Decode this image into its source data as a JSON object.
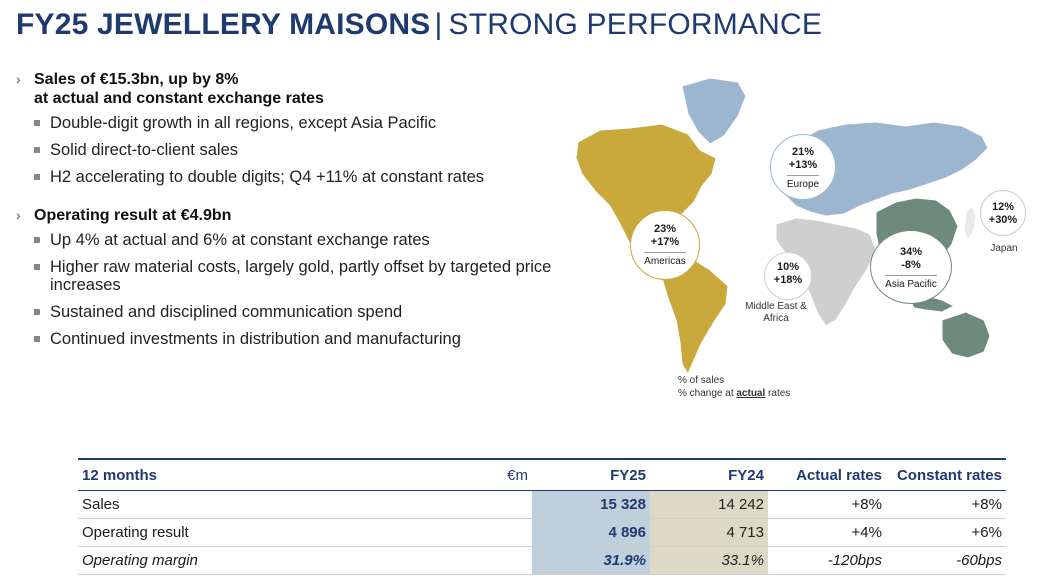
{
  "title": {
    "bold": "FY25 JEWELLERY MAISONS",
    "separator": "|",
    "thin": "STRONG PERFORMANCE"
  },
  "section1": {
    "heading_line1": "Sales of €15.3bn, up by 8%",
    "heading_line2": "at actual and constant exchange rates",
    "items": [
      "Double-digit growth in all regions, except Asia Pacific",
      "Solid direct-to-client sales",
      "H2 accelerating to double digits; Q4 +11% at constant rates"
    ]
  },
  "section2": {
    "heading": "Operating result at €4.9bn",
    "items": [
      "Up 4% at actual and 6% at constant exchange rates",
      "Higher raw material costs, largely gold, partly offset by targeted price increases",
      "Sustained and disciplined communication spend",
      "Continued investments in distribution and manufacturing"
    ]
  },
  "map": {
    "colors": {
      "americas": "#c9a83c",
      "europe": "#9db6cf",
      "middle_east_africa": "#cfcfcf",
      "asia_pacific": "#6e8a7c",
      "japan": "#e9e9e9"
    },
    "regions": {
      "europe": {
        "share": "21%",
        "change": "+13%",
        "name": "Europe"
      },
      "americas": {
        "share": "23%",
        "change": "+17%",
        "name": "Americas"
      },
      "mea": {
        "share": "10%",
        "change": "+18%",
        "name": "Middle East & Africa"
      },
      "asia_pacific": {
        "share": "34%",
        "change": "-8%",
        "name": "Asia Pacific"
      },
      "japan": {
        "share": "12%",
        "change": "+30%",
        "name": "Japan"
      }
    },
    "legend": {
      "line1": "% of sales",
      "line2_prefix": "% change at ",
      "line2_em": "actual",
      "line2_suffix": " rates"
    }
  },
  "table": {
    "headers": {
      "period": "12 months",
      "unit": "€m",
      "fy25": "FY25",
      "fy24": "FY24",
      "actual": "Actual rates",
      "constant": "Constant rates"
    },
    "rows": [
      {
        "label": "Sales",
        "fy25": "15 328",
        "fy24": "14 242",
        "actual": "+8%",
        "constant": "+8%"
      },
      {
        "label": "Operating result",
        "fy25": "4 896",
        "fy24": "4 713",
        "actual": "+4%",
        "constant": "+6%"
      },
      {
        "label": "Operating margin",
        "fy25": "31.9%",
        "fy24": "33.1%",
        "actual": "-120bps",
        "constant": "-60bps"
      }
    ]
  }
}
